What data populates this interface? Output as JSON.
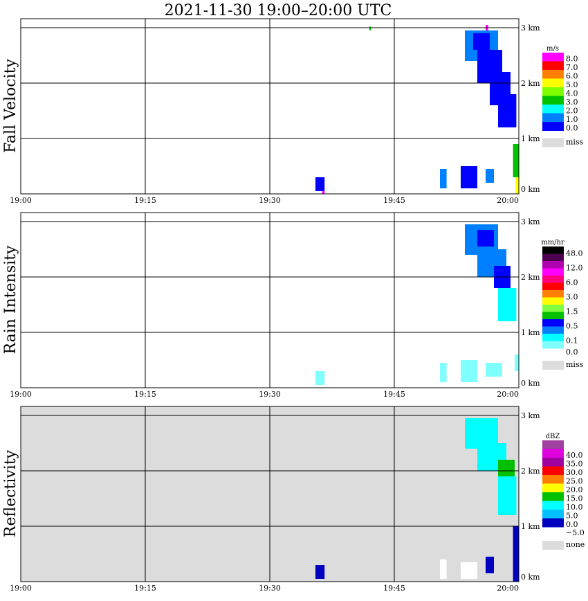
{
  "chart_data": {
    "type": "heatmap",
    "title": "2021-11-30   19:00–20:00 UTC",
    "x_ticks": [
      "19:00",
      "19:15",
      "19:30",
      "19:45",
      "20:00"
    ],
    "x_range_minutes": [
      0,
      60
    ],
    "y_ticks": [
      "0 km",
      "1 km",
      "2 km",
      "3 km"
    ],
    "y_range_km": [
      0,
      3.16
    ],
    "panels": [
      {
        "ylabel": "Fall Velocity",
        "unit": "m/s",
        "background": "#ffffff",
        "legend": [
          {
            "color": "#ff00ff",
            "label": "8.0"
          },
          {
            "color": "#ff0000",
            "label": "7.0"
          },
          {
            "color": "#ff8000",
            "label": "6.0"
          },
          {
            "color": "#ffff00",
            "label": "5.0"
          },
          {
            "color": "#80ff00",
            "label": "4.0"
          },
          {
            "color": "#00c000",
            "label": "3.0"
          },
          {
            "color": "#00ffff",
            "label": "2.0"
          },
          {
            "color": "#0080ff",
            "label": "1.0"
          },
          {
            "color": "#0000ff",
            "label": "0.0"
          }
        ],
        "missing": {
          "color": "#dcdcdc",
          "label": "miss"
        },
        "echoes": [
          {
            "t": [
              53.5,
              57.5
            ],
            "h": [
              2.4,
              2.95
            ],
            "color": "#0080ff"
          },
          {
            "t": [
              55,
              58
            ],
            "h": [
              2.0,
              2.6
            ],
            "color": "#0000ff"
          },
          {
            "t": [
              56.5,
              59
            ],
            "h": [
              1.6,
              2.2
            ],
            "color": "#0000ff"
          },
          {
            "t": [
              57.5,
              59.7
            ],
            "h": [
              1.2,
              1.8
            ],
            "color": "#0000ff"
          },
          {
            "t": [
              54.5,
              56.5
            ],
            "h": [
              2.6,
              2.9
            ],
            "color": "#0000ff"
          },
          {
            "t": [
              56,
              56.3
            ],
            "h": [
              2.95,
              3.05
            ],
            "color": "#ff00ff"
          },
          {
            "t": [
              42,
              42.2
            ],
            "h": [
              2.95,
              3.02
            ],
            "color": "#00c000"
          },
          {
            "t": [
              35.5,
              36.6
            ],
            "h": [
              0.05,
              0.3
            ],
            "color": "#0000ff"
          },
          {
            "t": [
              36.3,
              36.6
            ],
            "h": [
              0,
              0.05
            ],
            "color": "#ff00ff"
          },
          {
            "t": [
              50.5,
              51.3
            ],
            "h": [
              0.1,
              0.45
            ],
            "color": "#0080ff"
          },
          {
            "t": [
              53,
              55
            ],
            "h": [
              0.1,
              0.5
            ],
            "color": "#0000ff"
          },
          {
            "t": [
              56,
              57
            ],
            "h": [
              0.2,
              0.45
            ],
            "color": "#0080ff"
          },
          {
            "t": [
              59.3,
              60
            ],
            "h": [
              0.3,
              0.9
            ],
            "color": "#00c000"
          },
          {
            "t": [
              59.6,
              60
            ],
            "h": [
              0,
              0.3
            ],
            "color": "#ffff00"
          }
        ]
      },
      {
        "ylabel": "Rain Intensity",
        "unit": "mm/hr",
        "background": "#ffffff",
        "legend": [
          {
            "color": "#000000",
            "label": "48.0"
          },
          {
            "color": "#500050",
            "label": ""
          },
          {
            "color": "#b000b0",
            "label": "12.0"
          },
          {
            "color": "#ff00ff",
            "label": ""
          },
          {
            "color": "#ff0080",
            "label": "6.0"
          },
          {
            "color": "#ff0000",
            "label": ""
          },
          {
            "color": "#ff8000",
            "label": "3.0"
          },
          {
            "color": "#ffff00",
            "label": ""
          },
          {
            "color": "#80ff40",
            "label": "1.5"
          },
          {
            "color": "#00c000",
            "label": ""
          },
          {
            "color": "#0000ff",
            "label": "0.5"
          },
          {
            "color": "#0080ff",
            "label": ""
          },
          {
            "color": "#00ffff",
            "label": "0.1"
          },
          {
            "color": "#80ffff",
            "label": "0.0"
          }
        ],
        "missing": {
          "color": "#dcdcdc",
          "label": "miss"
        },
        "echoes": [
          {
            "t": [
              53.5,
              57.5
            ],
            "h": [
              2.4,
              2.95
            ],
            "color": "#0080ff"
          },
          {
            "t": [
              55,
              57
            ],
            "h": [
              2.55,
              2.85
            ],
            "color": "#0000ff"
          },
          {
            "t": [
              55,
              58.5
            ],
            "h": [
              2.0,
              2.5
            ],
            "color": "#0080ff"
          },
          {
            "t": [
              57,
              59
            ],
            "h": [
              1.8,
              2.2
            ],
            "color": "#0000ff"
          },
          {
            "t": [
              57.5,
              59.7
            ],
            "h": [
              1.2,
              1.8
            ],
            "color": "#00ffff"
          },
          {
            "t": [
              35.5,
              36.6
            ],
            "h": [
              0.05,
              0.3
            ],
            "color": "#80ffff"
          },
          {
            "t": [
              50.5,
              51.3
            ],
            "h": [
              0.1,
              0.45
            ],
            "color": "#80ffff"
          },
          {
            "t": [
              53,
              55
            ],
            "h": [
              0.1,
              0.5
            ],
            "color": "#80ffff"
          },
          {
            "t": [
              56,
              58
            ],
            "h": [
              0.2,
              0.45
            ],
            "color": "#80ffff"
          },
          {
            "t": [
              59.5,
              60
            ],
            "h": [
              0.3,
              0.6
            ],
            "color": "#80ffff"
          }
        ]
      },
      {
        "ylabel": "Reflectivity",
        "unit": "dBZ",
        "background": "#dcdcdc",
        "legend": [
          {
            "color": "#a040a0",
            "label": ""
          },
          {
            "color": "#e000e0",
            "label": "40.0"
          },
          {
            "color": "#a000a0",
            "label": "35.0"
          },
          {
            "color": "#ff0000",
            "label": "30.0"
          },
          {
            "color": "#ff8000",
            "label": "25.0"
          },
          {
            "color": "#ffff00",
            "label": "20.0"
          },
          {
            "color": "#00c000",
            "label": "15.0"
          },
          {
            "color": "#00ffff",
            "label": "10.0"
          },
          {
            "color": "#00c0ff",
            "label": "5.0"
          },
          {
            "color": "#0000c0",
            "label": "0.0"
          }
        ],
        "legend_bottom_label": "−5.0",
        "missing": {
          "color": "#dcdcdc",
          "label": "none"
        },
        "echoes": [
          {
            "t": [
              53.5,
              57.5
            ],
            "h": [
              2.4,
              2.95
            ],
            "color": "#00ffff"
          },
          {
            "t": [
              55,
              58.5
            ],
            "h": [
              2.0,
              2.5
            ],
            "color": "#00ffff"
          },
          {
            "t": [
              57.5,
              59.5
            ],
            "h": [
              1.9,
              2.2
            ],
            "color": "#00c000"
          },
          {
            "t": [
              57.5,
              59.7
            ],
            "h": [
              1.2,
              1.9
            ],
            "color": "#00ffff"
          },
          {
            "t": [
              35.5,
              36.6
            ],
            "h": [
              0.05,
              0.3
            ],
            "color": "#0000c0"
          },
          {
            "t": [
              50.5,
              51.3
            ],
            "h": [
              0.05,
              0.4
            ],
            "color": "#ffffff"
          },
          {
            "t": [
              53,
              55
            ],
            "h": [
              0.05,
              0.35
            ],
            "color": "#ffffff"
          },
          {
            "t": [
              56,
              57
            ],
            "h": [
              0.15,
              0.45
            ],
            "color": "#0000c0"
          },
          {
            "t": [
              59.3,
              60
            ],
            "h": [
              0,
              1.0
            ],
            "color": "#0000c0"
          }
        ]
      }
    ]
  }
}
